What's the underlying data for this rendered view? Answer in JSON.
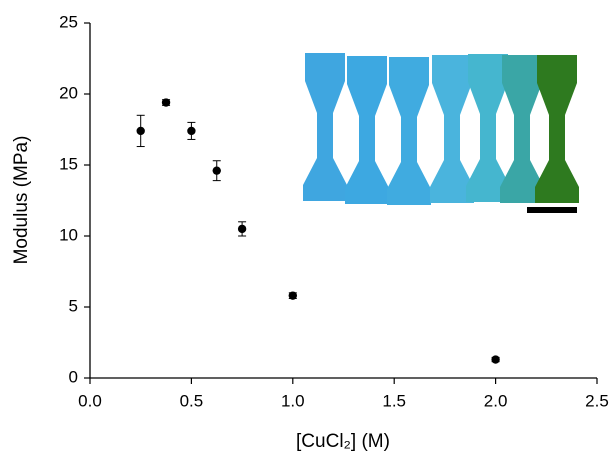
{
  "chart_data": {
    "type": "scatter",
    "x_label": "[CuCl₂] (M)",
    "y_label": "Modulus (MPa)",
    "x": [
      0.25,
      0.375,
      0.5,
      0.625,
      0.75,
      1.0,
      2.0
    ],
    "values": [
      17.4,
      19.4,
      17.4,
      14.6,
      10.5,
      5.8,
      1.3
    ],
    "errors": [
      1.1,
      0.2,
      0.6,
      0.7,
      0.5,
      0.2,
      0.15
    ],
    "color": "#000000",
    "xlim": [
      0,
      2.5
    ],
    "xticks": [
      {
        "value": 0,
        "label": "0.0"
      },
      0.5,
      {
        "value": 1,
        "label": "1.0"
      },
      1.5,
      {
        "value": 2,
        "label": "2.0"
      },
      2.5
    ],
    "ylim": [
      0,
      25
    ],
    "yticks": [
      0,
      5,
      10,
      15,
      20,
      25
    ],
    "grid": false
  }
}
